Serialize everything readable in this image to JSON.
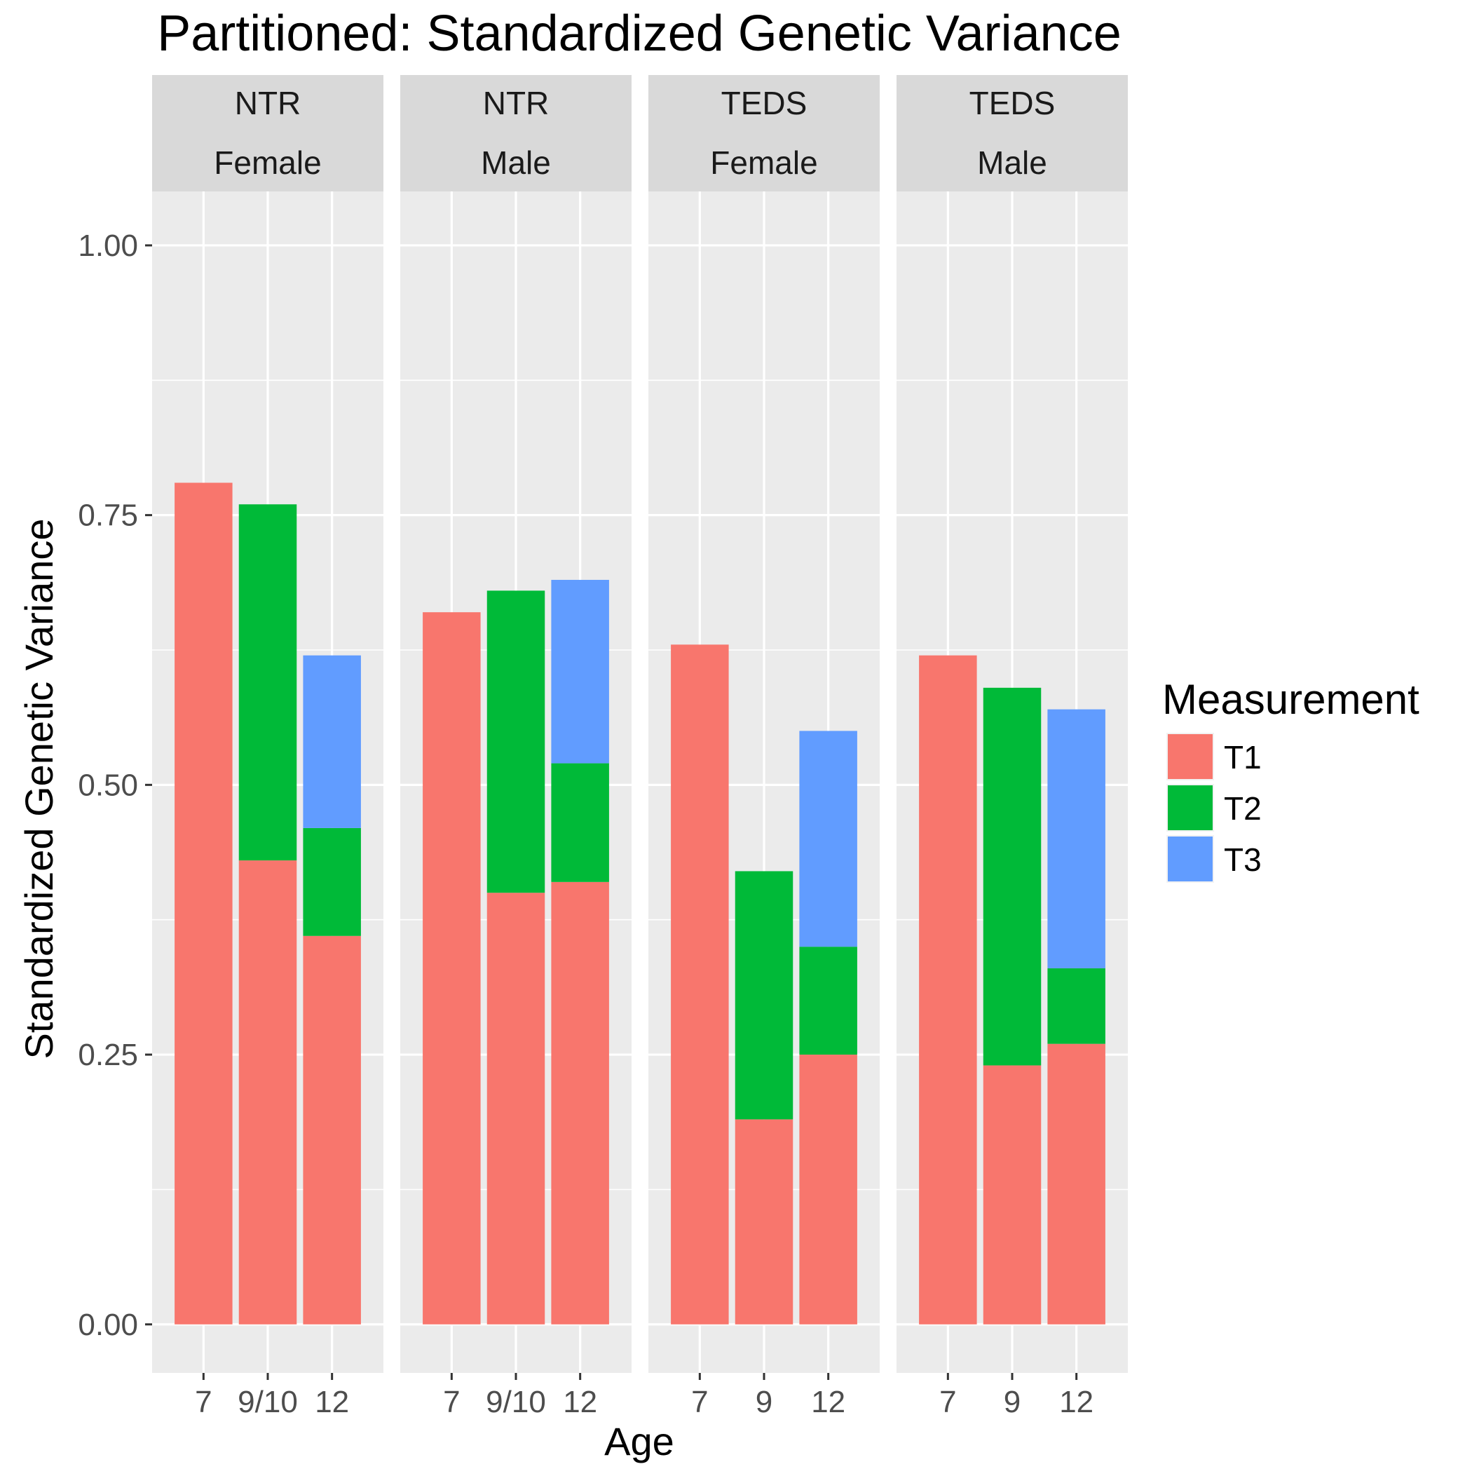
{
  "chart_data": {
    "type": "bar",
    "stacked": true,
    "title": "Partitioned: Standardized Genetic Variance",
    "xlabel": "Age",
    "ylabel": "Standardized Genetic Variance",
    "ylim": [
      -0.045,
      1.05
    ],
    "yticks": [
      "0.00",
      "0.25",
      "0.50",
      "0.75",
      "1.00"
    ],
    "ytick_values": [
      0,
      0.25,
      0.5,
      0.75,
      1.0
    ],
    "grid": true,
    "legend": {
      "title": "Measurement",
      "position": "right",
      "items": [
        {
          "name": "T1",
          "color": "#F8766D"
        },
        {
          "name": "T2",
          "color": "#00BA38"
        },
        {
          "name": "T3",
          "color": "#619CFF"
        }
      ]
    },
    "panels": [
      {
        "strip": [
          "NTR",
          "Female"
        ],
        "categories": [
          "7",
          "9/10",
          "12"
        ],
        "series": [
          {
            "name": "T1",
            "values": [
              0.78,
              0.43,
              0.36
            ]
          },
          {
            "name": "T2",
            "values": [
              0,
              0.33,
              0.1
            ]
          },
          {
            "name": "T3",
            "values": [
              0,
              0,
              0.16
            ]
          }
        ]
      },
      {
        "strip": [
          "NTR",
          "Male"
        ],
        "categories": [
          "7",
          "9/10",
          "12"
        ],
        "series": [
          {
            "name": "T1",
            "values": [
              0.66,
              0.4,
              0.41
            ]
          },
          {
            "name": "T2",
            "values": [
              0,
              0.28,
              0.11
            ]
          },
          {
            "name": "T3",
            "values": [
              0,
              0,
              0.17
            ]
          }
        ]
      },
      {
        "strip": [
          "TEDS",
          "Female"
        ],
        "categories": [
          "7",
          "9",
          "12"
        ],
        "series": [
          {
            "name": "T1",
            "values": [
              0.63,
              0.19,
              0.25
            ]
          },
          {
            "name": "T2",
            "values": [
              0,
              0.23,
              0.1
            ]
          },
          {
            "name": "T3",
            "values": [
              0,
              0,
              0.2
            ]
          }
        ]
      },
      {
        "strip": [
          "TEDS",
          "Male"
        ],
        "categories": [
          "7",
          "9",
          "12"
        ],
        "series": [
          {
            "name": "T1",
            "values": [
              0.62,
              0.24,
              0.26
            ]
          },
          {
            "name": "T2",
            "values": [
              0,
              0.35,
              0.07
            ]
          },
          {
            "name": "T3",
            "values": [
              0,
              0,
              0.24
            ]
          }
        ]
      }
    ],
    "colors": {
      "panel_background": "#EBEBEB",
      "strip_background": "#D9D9D9",
      "grid": "#FFFFFF",
      "tick": "#333333"
    }
  }
}
